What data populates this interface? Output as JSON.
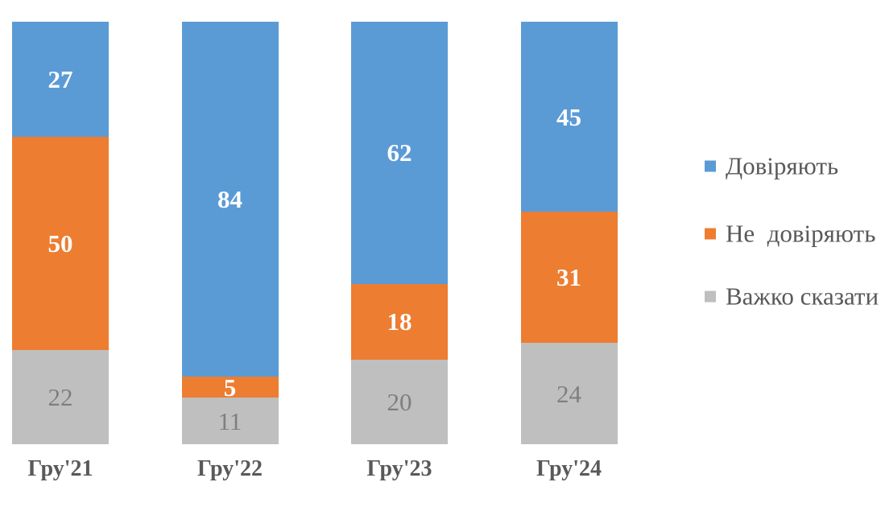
{
  "chart_data": {
    "type": "bar",
    "subtype": "stacked-100-percent",
    "orientation": "vertical",
    "categories": [
      "Гру'21",
      "Гру'22",
      "Гру'23",
      "Гру'24"
    ],
    "series": [
      {
        "name": "Довіряють",
        "color": "#5B9BD5",
        "values": [
          27,
          84,
          62,
          45
        ],
        "label_style": "white-bold"
      },
      {
        "name": "Не  довіряють",
        "color": "#ED7D31",
        "values": [
          50,
          5,
          18,
          31
        ],
        "label_style": "white-bold"
      },
      {
        "name": "Важко сказати",
        "color": "#BFBFBF",
        "values": [
          22,
          11,
          20,
          24
        ],
        "label_style": "gray"
      }
    ],
    "title": "",
    "xlabel": "",
    "ylabel": "",
    "ylim": [
      0,
      100
    ],
    "grid": "off",
    "axes_visible": false,
    "data_labels": "inside-center",
    "legend_position": "right",
    "colors": {
      "background": "#FFFFFF",
      "category_label": "#595959",
      "legend_text": "#595959",
      "gray_value_label": "#7F7F7F",
      "white_value_label": "#FFFFFF"
    }
  }
}
